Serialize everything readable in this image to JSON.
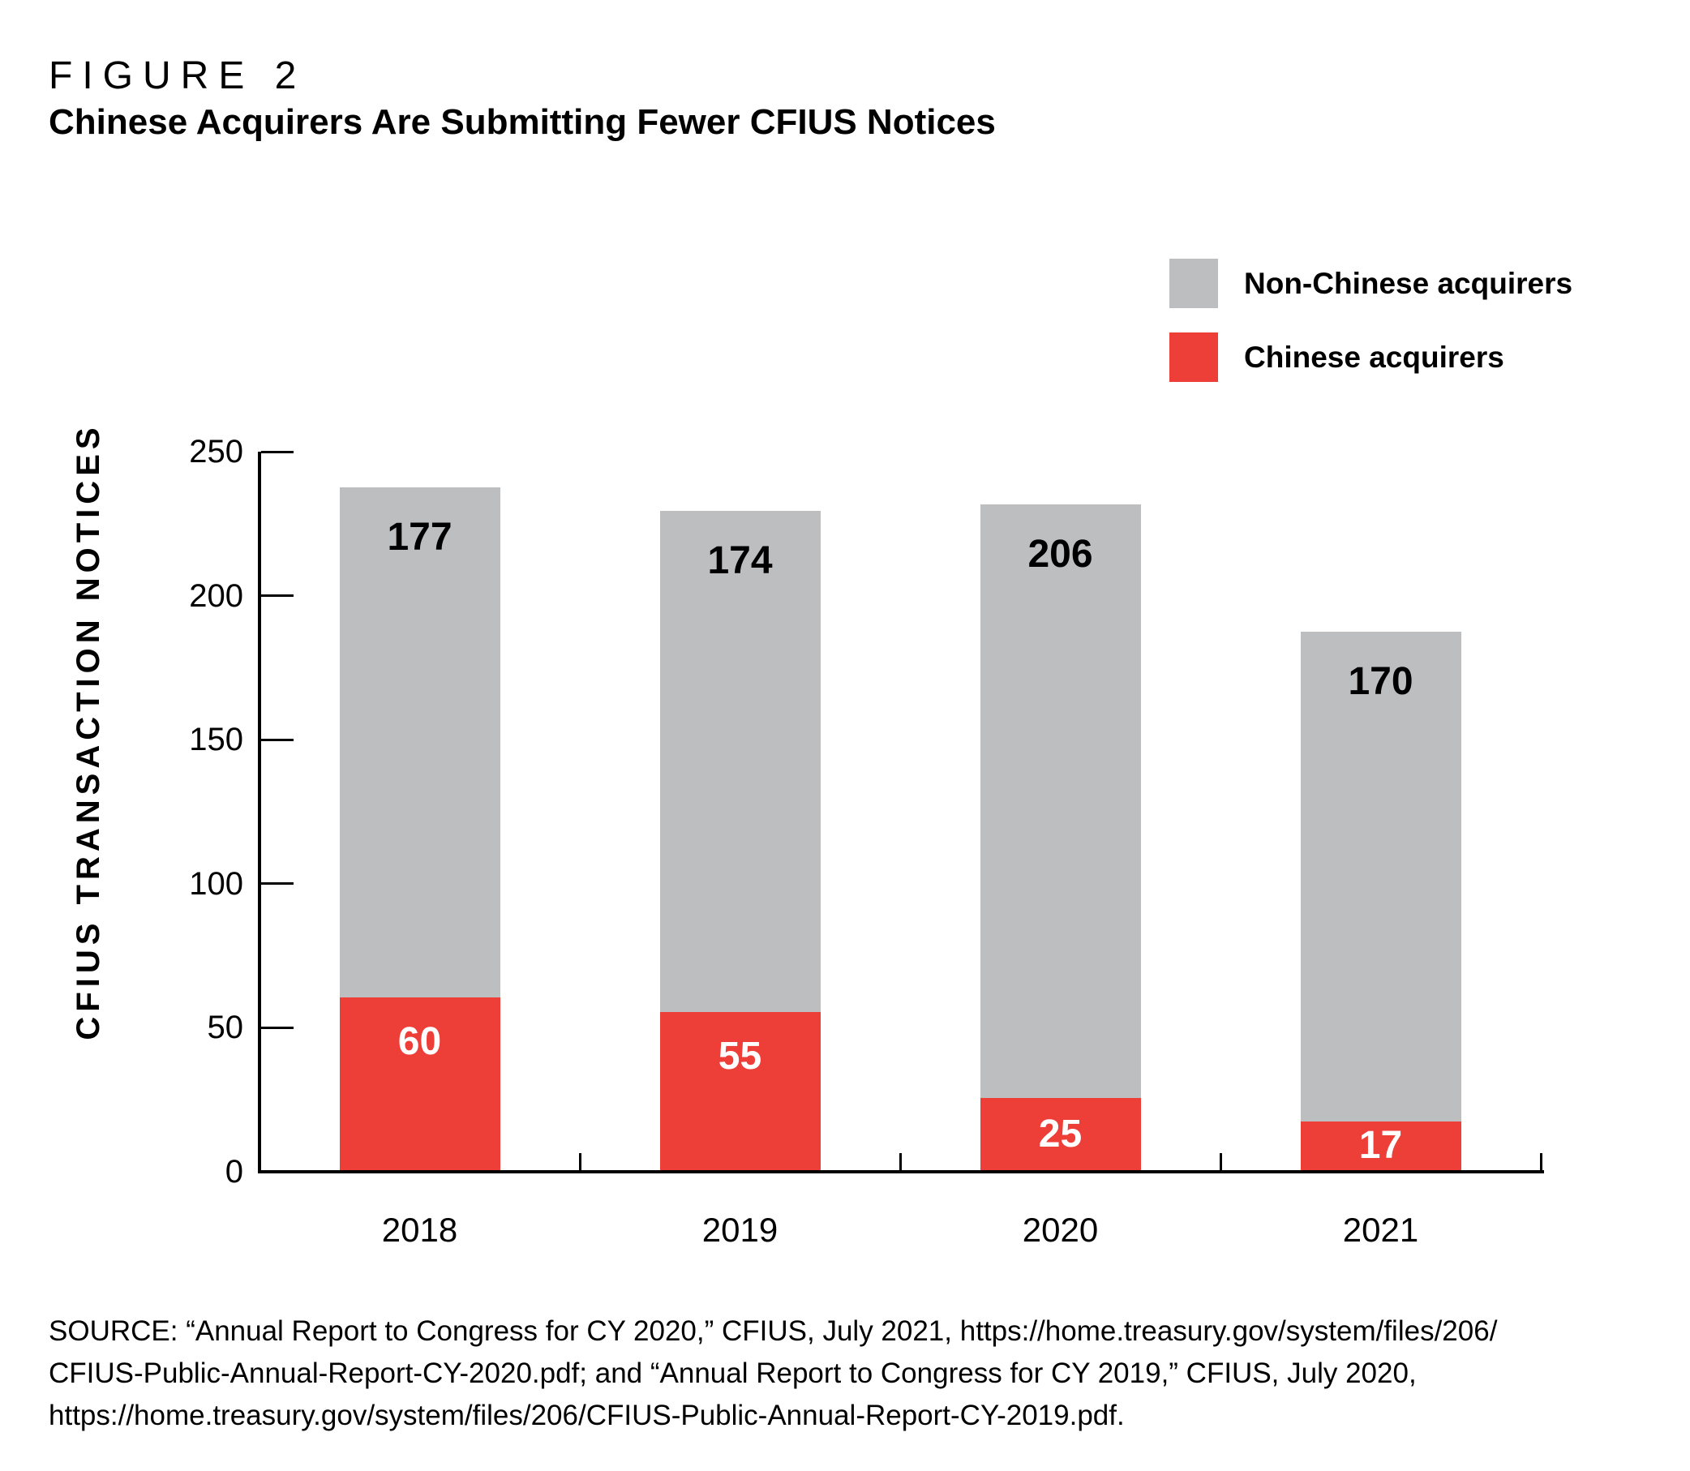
{
  "figure": {
    "label": "FIGURE 2",
    "title": "Chinese Acquirers Are Submitting Fewer CFIUS Notices"
  },
  "legend": {
    "items": [
      {
        "label": "Non-Chinese acquirers",
        "color": "#BDBEC0"
      },
      {
        "label": "Chinese acquirers",
        "color": "#EE3E38"
      }
    ]
  },
  "chart_data": {
    "type": "bar",
    "stacked": true,
    "title": "Chinese Acquirers Are Submitting Fewer CFIUS Notices",
    "categories": [
      "2018",
      "2019",
      "2020",
      "2021"
    ],
    "series": [
      {
        "name": "Chinese acquirers",
        "color": "#EE3E38",
        "label_color": "#FFFFFF",
        "values": [
          60,
          55,
          25,
          17
        ]
      },
      {
        "name": "Non-Chinese acquirers",
        "color": "#BDBEC0",
        "label_color": "#000000",
        "values": [
          177,
          174,
          206,
          170
        ]
      }
    ],
    "totals": [
      237,
      229,
      231,
      187
    ],
    "xlabel": "",
    "ylabel": "CFIUS TRANSACTION NOTICES",
    "ylim": [
      0,
      250
    ],
    "yticks": [
      0,
      50,
      100,
      150,
      200,
      250
    ],
    "grid": false,
    "legend_position": "top-right"
  },
  "source": {
    "lines": [
      "SOURCE: “Annual Report to Congress for CY 2020,” CFIUS, July 2021, https://home.treasury.gov/system/files/206/",
      "CFIUS-Public-Annual-Report-CY-2020.pdf; and “Annual Report to Congress for CY 2019,” CFIUS, July 2020,",
      "https://home.treasury.gov/system/files/206/CFIUS-Public-Annual-Report-CY-2019.pdf."
    ]
  }
}
